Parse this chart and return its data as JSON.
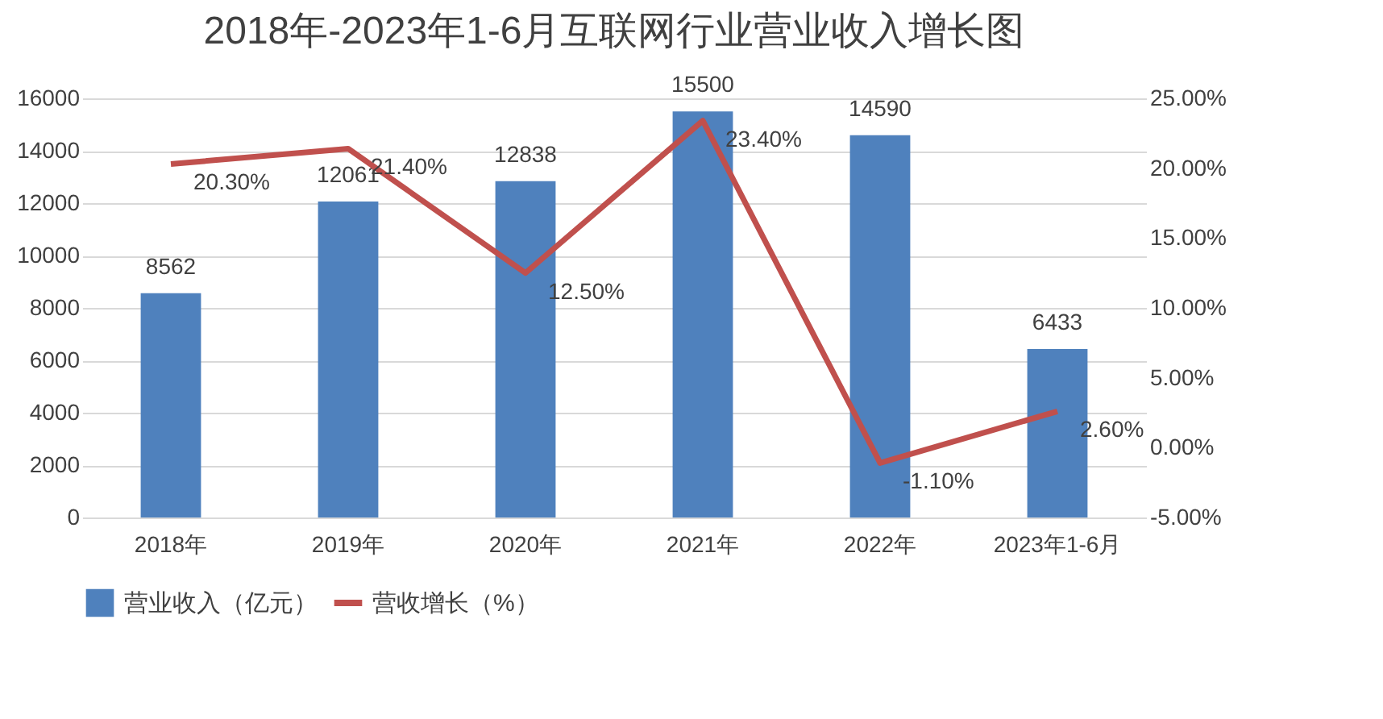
{
  "chart_data": {
    "type": "bar",
    "title": "2018年-2023年1-6月互联网行业营业收入增长图",
    "categories": [
      "2018年",
      "2019年",
      "2020年",
      "2021年",
      "2022年",
      "2023年1-6月"
    ],
    "series": [
      {
        "name": "营业收入（亿元）",
        "color": "#4f81bd",
        "values": [
          8562,
          12061,
          12838,
          15500,
          14590,
          6433
        ]
      },
      {
        "name": "营收增长（%）",
        "type": "line",
        "axis": "y2",
        "color": "#c0504d",
        "values": [
          20.3,
          21.4,
          12.5,
          23.4,
          -1.1,
          2.6
        ],
        "value_labels": [
          "20.30%",
          "21.40%",
          "12.50%",
          "23.40%",
          "-1.10%",
          "2.60%"
        ]
      }
    ],
    "data_labels": true,
    "ylim": [
      0,
      16000
    ],
    "yticks": [
      0,
      2000,
      4000,
      6000,
      8000,
      10000,
      12000,
      14000,
      16000
    ],
    "y2lim": [
      -5,
      25
    ],
    "y2ticks": [
      {
        "value": -5,
        "label": "-5.00%"
      },
      {
        "value": 0,
        "label": "0.00%"
      },
      {
        "value": 5,
        "label": "5.00%"
      },
      {
        "value": 10,
        "label": "10.00%"
      },
      {
        "value": 15,
        "label": "15.00%"
      },
      {
        "value": 20,
        "label": "20.00%"
      },
      {
        "value": 25,
        "label": "25.00%"
      }
    ],
    "grid": "y",
    "legend": "bottom",
    "marker": "none",
    "line_style": "solid"
  }
}
